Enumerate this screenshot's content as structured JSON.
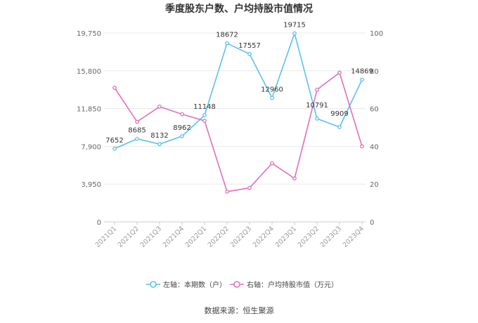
{
  "chart_data": {
    "type": "line",
    "title": "季度股东户数、户均持股市值情况",
    "categories": [
      "2021Q1",
      "2021Q2",
      "2021Q3",
      "2021Q4",
      "2022Q1",
      "2022Q2",
      "2022Q3",
      "2022Q4",
      "2023Q1",
      "2023Q2",
      "2023Q3",
      "2023Q4"
    ],
    "left_axis": {
      "ticks": [
        "0",
        "3,950",
        "7,900",
        "11,850",
        "15,800",
        "19,750"
      ],
      "ylim": [
        0,
        19750
      ]
    },
    "right_axis": {
      "ticks": [
        "0",
        "20",
        "40",
        "60",
        "80",
        "100"
      ],
      "ylim": [
        0,
        100
      ]
    },
    "series": [
      {
        "name": "左轴：本期数（户）",
        "axis": "left",
        "color": "#5bc0eb",
        "values": [
          7652,
          8685,
          8132,
          8962,
          11148,
          18672,
          17557,
          12960,
          19715,
          10791,
          9909,
          14869
        ],
        "labels": [
          "7652",
          "8685",
          "8132",
          "8962",
          "11148",
          "18672",
          "17557",
          "12960",
          "19715",
          "10791",
          "9909",
          "14869"
        ]
      },
      {
        "name": "右轴：户均持股市值（万元）",
        "axis": "right",
        "color": "#e070bb",
        "values": [
          71,
          53,
          61,
          57,
          53.5,
          16,
          18,
          31,
          23,
          70,
          79,
          40
        ]
      }
    ],
    "legend_position": "bottom",
    "grid": true
  },
  "footer": {
    "source": "数据来源：恒生聚源"
  }
}
